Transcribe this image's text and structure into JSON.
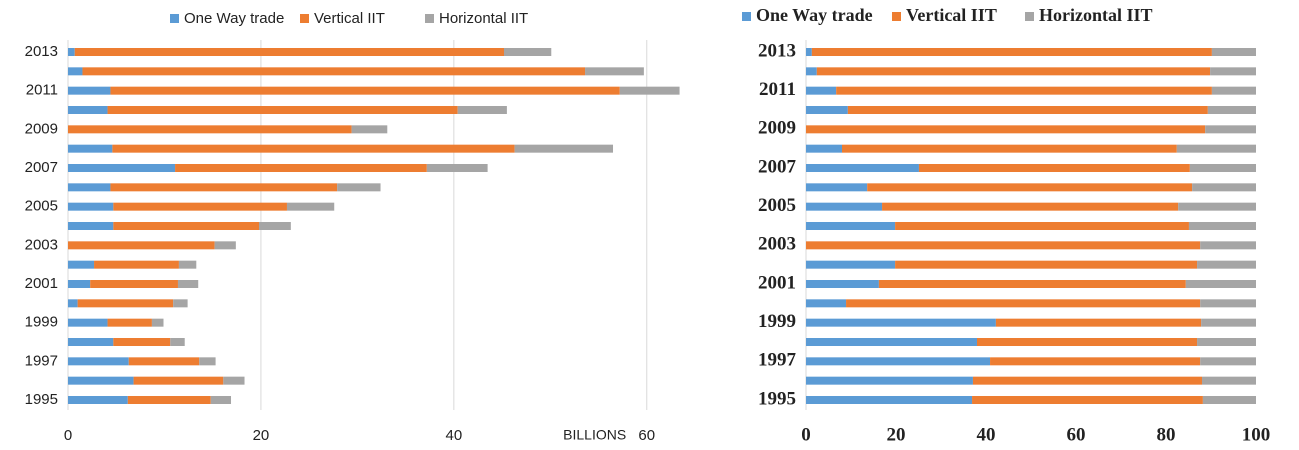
{
  "chart_data": [
    {
      "type": "bar",
      "orientation": "horizontal",
      "stacked": true,
      "x_label": "BILLIONS",
      "categories": [
        "1995",
        null,
        "1997",
        null,
        "1999",
        null,
        "2001",
        null,
        "2003",
        null,
        "2005",
        null,
        "2007",
        null,
        "2009",
        null,
        "2011",
        null,
        "2013"
      ],
      "series": [
        {
          "name": "One Way trade",
          "color": "#5b9bd5",
          "values": [
            6.2,
            6.8,
            6.3,
            4.7,
            4.1,
            1.0,
            2.3,
            2.7,
            0,
            4.7,
            4.7,
            4.4,
            11.1,
            4.6,
            0,
            4.1,
            4.4,
            1.5,
            0.7
          ]
        },
        {
          "name": "Vertical IIT",
          "color": "#ed7d31",
          "values": [
            8.6,
            9.3,
            7.3,
            5.9,
            4.6,
            9.9,
            9.1,
            8.8,
            15.2,
            15.1,
            18.0,
            23.5,
            26.1,
            41.7,
            29.4,
            36.3,
            52.8,
            52.1,
            44.5
          ]
        },
        {
          "name": "Horizontal IIT",
          "color": "#a5a5a5",
          "values": [
            2.1,
            2.2,
            1.7,
            1.5,
            1.2,
            1.5,
            2.1,
            1.8,
            2.2,
            3.3,
            4.9,
            4.5,
            6.3,
            10.2,
            3.7,
            5.1,
            6.2,
            6.1,
            4.9
          ]
        }
      ],
      "xlim": [
        0,
        65
      ],
      "xticks": [
        0,
        20,
        40,
        60
      ],
      "grid": true
    },
    {
      "type": "bar",
      "orientation": "horizontal",
      "stacked": true,
      "categories": [
        "1995",
        null,
        "1997",
        null,
        "1999",
        null,
        "2001",
        null,
        "2003",
        null,
        "2005",
        null,
        "2007",
        null,
        "2009",
        null,
        "2011",
        null,
        "2013"
      ],
      "series": [
        {
          "name": "One Way trade",
          "color": "#5b9bd5",
          "values": [
            36.9,
            37.1,
            40.9,
            38.0,
            42.2,
            8.9,
            16.2,
            19.8,
            0,
            19.8,
            16.9,
            13.6,
            25.1,
            8.0,
            0,
            9.3,
            6.7,
            2.4,
            1.3
          ]
        },
        {
          "name": "Vertical IIT",
          "color": "#ed7d31",
          "values": [
            51.3,
            50.9,
            46.7,
            48.9,
            45.6,
            78.7,
            68.2,
            67.1,
            87.6,
            65.3,
            65.8,
            72.2,
            60.2,
            74.4,
            88.7,
            80.0,
            83.5,
            87.4,
            88.9
          ]
        },
        {
          "name": "Horizontal IIT",
          "color": "#a5a5a5",
          "values": [
            11.8,
            12.0,
            12.4,
            13.1,
            12.2,
            12.4,
            15.6,
            13.1,
            12.4,
            14.9,
            17.3,
            14.2,
            14.7,
            17.6,
            11.3,
            10.7,
            9.8,
            10.2,
            9.8
          ]
        }
      ],
      "xlim": [
        0,
        100
      ],
      "xticks": [
        0,
        20,
        40,
        60,
        80,
        100
      ],
      "grid": false
    }
  ]
}
